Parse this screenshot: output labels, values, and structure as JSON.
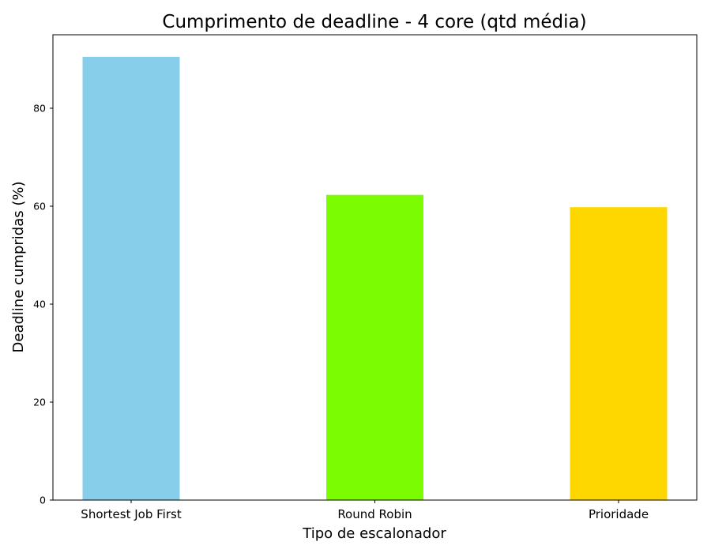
{
  "chart_data": {
    "type": "bar",
    "title": "Cumprimento de deadline - 4 core (qtd média)",
    "xlabel": "Tipo de escalonador",
    "ylabel": "Deadline cumpridas (%)",
    "categories": [
      "Shortest Job First",
      "Round Robin",
      "Prioridade"
    ],
    "values": [
      90.5,
      62.3,
      59.8
    ],
    "colors": [
      "#87ceeb",
      "#7cfc00",
      "#ffd700"
    ],
    "ylim": [
      0,
      95
    ],
    "yticks": [
      0,
      20,
      40,
      60,
      80
    ],
    "grid": false,
    "legend": "none"
  }
}
